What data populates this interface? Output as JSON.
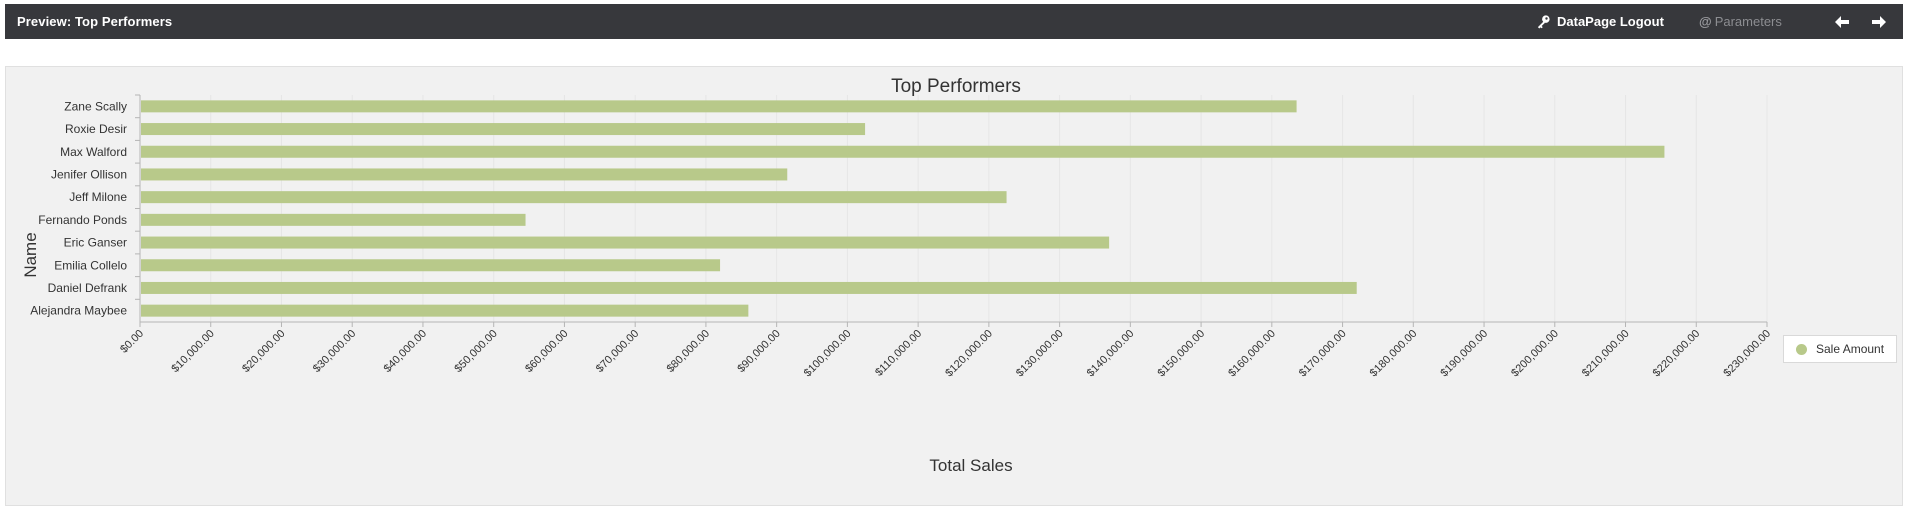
{
  "header": {
    "title": "Preview: Top Performers",
    "logout_label": "DataPage Logout",
    "params_label": "Parameters",
    "params_symbol": "@"
  },
  "colors": {
    "bar": "#b8c98a",
    "axis": "#b5b5b5",
    "grid": "#e6e6e6",
    "header_bg": "#37383c"
  },
  "chart_data": {
    "type": "bar",
    "orientation": "horizontal",
    "title": "Top Performers",
    "xlabel": "Total Sales",
    "ylabel": "Name",
    "xlim": [
      0,
      230000
    ],
    "x_tick_step": 10000,
    "grid": true,
    "legend_position": "right",
    "categories": [
      "Zane Scally",
      "Roxie Desir",
      "Max Walford",
      "Jenifer Ollison",
      "Jeff Milone",
      "Fernando Ponds",
      "Eric Ganser",
      "Emilia Collelo",
      "Daniel Defrank",
      "Alejandra Maybee"
    ],
    "series": [
      {
        "name": "Sale Amount",
        "values": [
          163500,
          102500,
          215500,
          91500,
          122500,
          54500,
          137000,
          82000,
          172000,
          86000
        ]
      }
    ]
  }
}
